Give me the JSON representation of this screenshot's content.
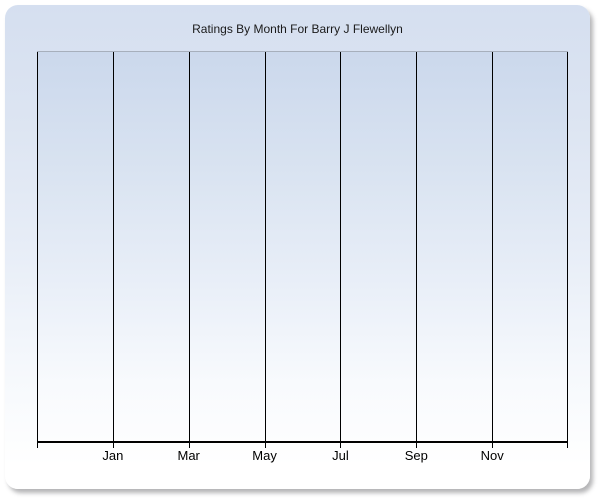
{
  "window": {
    "background_color": "#ffffff"
  },
  "chart_card": {
    "background_top_color": "#d5dff0",
    "background_bottom_color": "#ffffff",
    "shadow_color": "#8f8f94"
  },
  "chart_data": {
    "type": "bar",
    "title": "Ratings By Month For Barry J Flewellyn",
    "categories": [
      "Jan",
      "Mar",
      "May",
      "Jul",
      "Sep",
      "Nov"
    ],
    "series": [],
    "xlabel": "",
    "ylabel": "",
    "x_gridline_count": 8,
    "y_gridlines_visible": false,
    "y_axis_labels_visible": false,
    "legend_visible": false,
    "notes": "Plot area is empty: no data series, bars or points are rendered. Only vertical month gridlines, a bottom axis with tick marks at every gridline, and month labels centered under the six interior gridlines are visible.",
    "plot_colors": {
      "gridline": "#000000",
      "axis_line": "#000000",
      "plot_top_border": "#a7afbc",
      "plot_background_top": "#cbd8ec",
      "plot_background_bottom": "#fdfdfe",
      "label_color": "#000000",
      "title_color": "#1a1a1a"
    }
  }
}
